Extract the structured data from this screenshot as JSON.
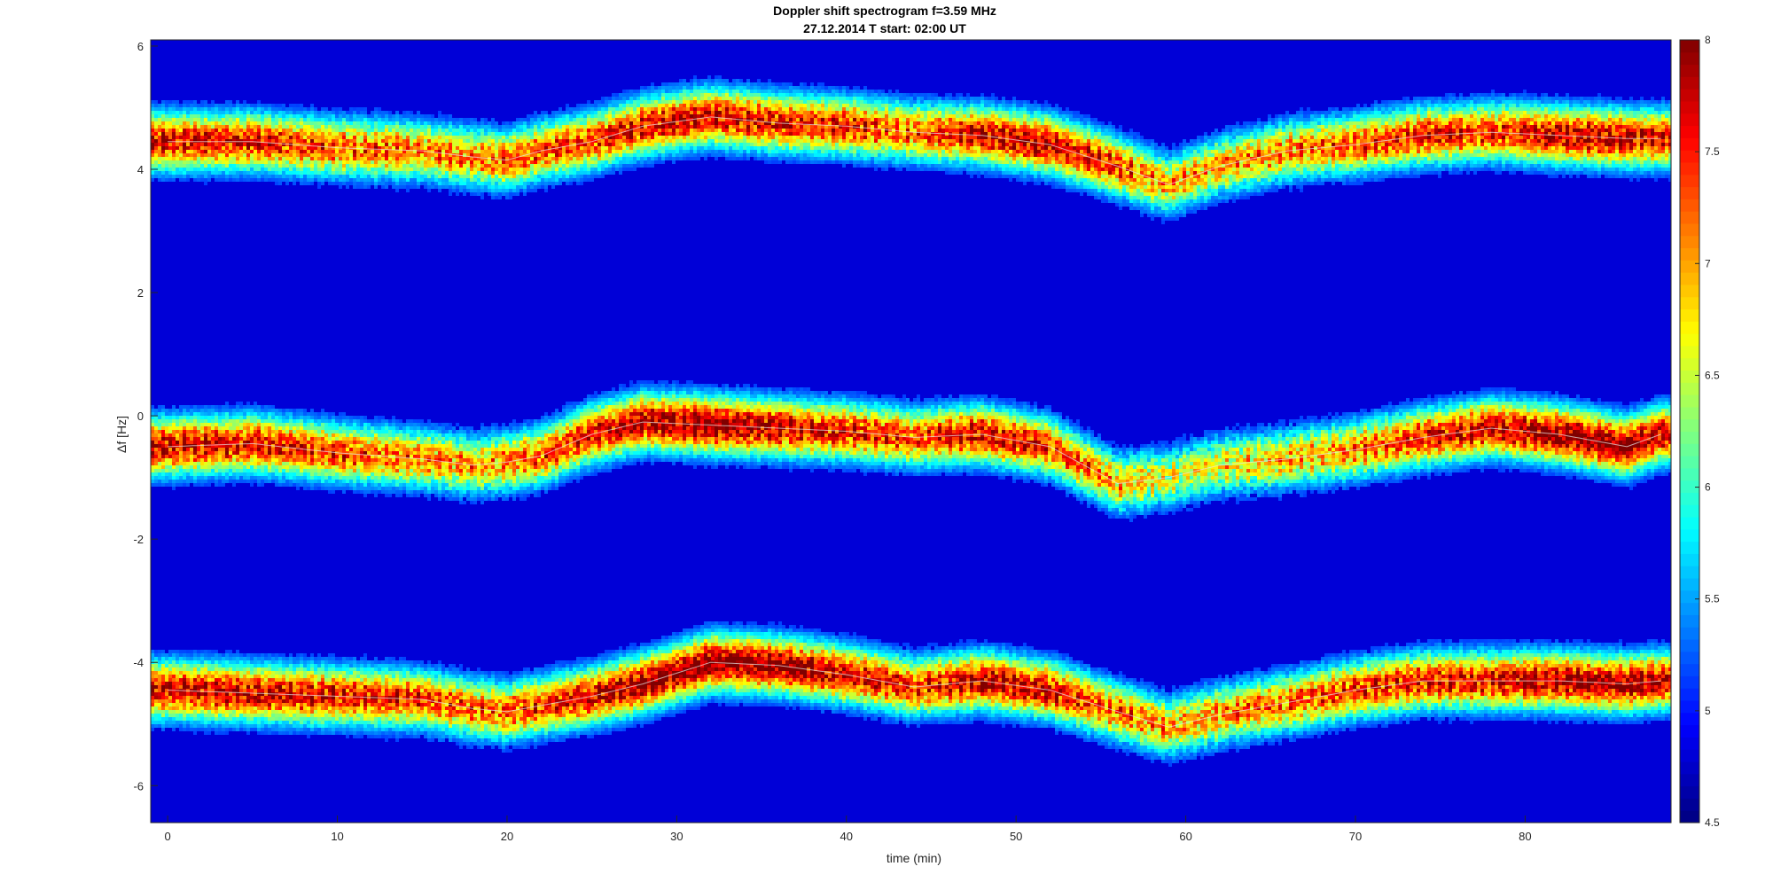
{
  "chart_data": {
    "type": "heatmap",
    "title": "Doppler shift spectrogram f=3.59 MHz",
    "subtitle": "27.12.2014   T start: 02:00 UT",
    "xlabel": "time (min)",
    "ylabel": "Δf [Hz]",
    "xlim": [
      -1,
      88.6
    ],
    "ylim": [
      -6.6,
      6.1
    ],
    "xticks": [
      0,
      10,
      20,
      30,
      40,
      50,
      60,
      70,
      80
    ],
    "yticks": [
      -6,
      -4,
      -2,
      0,
      2,
      4,
      6
    ],
    "grid": false,
    "colormap": "jet",
    "colorbar": {
      "range": [
        4.5,
        8
      ],
      "ticks": [
        4.5,
        5,
        5.5,
        6,
        6.5,
        7,
        7.5,
        8
      ]
    },
    "background_level": 4.8,
    "bands": [
      {
        "x": [
          0,
          5,
          10,
          15,
          18,
          20,
          22,
          25,
          28,
          32,
          36,
          40,
          44,
          48,
          52,
          56,
          59,
          62,
          66,
          70,
          74,
          78,
          82,
          86,
          88
        ],
        "y": [
          4.45,
          4.45,
          4.35,
          4.3,
          4.2,
          4.15,
          4.3,
          4.45,
          4.7,
          4.85,
          4.75,
          4.7,
          4.6,
          4.55,
          4.4,
          4.05,
          3.75,
          4.05,
          4.3,
          4.4,
          4.55,
          4.6,
          4.55,
          4.5,
          4.5
        ],
        "peak": [
          7.5,
          7.4,
          7.2,
          7.0,
          7.0,
          7.1,
          7.2,
          7.3,
          7.5,
          7.6,
          7.5,
          7.4,
          7.1,
          7.6,
          7.7,
          7.3,
          6.8,
          6.9,
          7.0,
          7.2,
          7.4,
          7.3,
          7.7,
          7.6,
          7.5
        ]
      },
      {
        "x": [
          0,
          5,
          10,
          15,
          18,
          20,
          22,
          25,
          28,
          32,
          36,
          40,
          44,
          48,
          52,
          56,
          59,
          62,
          66,
          70,
          74,
          78,
          82,
          86,
          88
        ],
        "y": [
          -0.5,
          -0.45,
          -0.6,
          -0.7,
          -0.8,
          -0.75,
          -0.65,
          -0.3,
          -0.1,
          -0.15,
          -0.2,
          -0.25,
          -0.35,
          -0.3,
          -0.5,
          -1.1,
          -1.0,
          -0.8,
          -0.7,
          -0.55,
          -0.35,
          -0.2,
          -0.3,
          -0.5,
          -0.3
        ],
        "peak": [
          7.6,
          7.5,
          7.3,
          7.0,
          6.9,
          7.0,
          7.2,
          7.5,
          7.7,
          7.9,
          7.6,
          7.4,
          7.2,
          7.6,
          7.3,
          6.8,
          6.5,
          6.6,
          6.8,
          7.0,
          7.4,
          7.6,
          7.8,
          7.9,
          7.6
        ]
      },
      {
        "x": [
          0,
          5,
          10,
          15,
          18,
          20,
          22,
          25,
          28,
          32,
          36,
          40,
          44,
          48,
          52,
          56,
          59,
          62,
          66,
          70,
          74,
          78,
          82,
          86,
          88
        ],
        "y": [
          -4.45,
          -4.5,
          -4.55,
          -4.6,
          -4.75,
          -4.8,
          -4.7,
          -4.55,
          -4.35,
          -4.0,
          -4.05,
          -4.2,
          -4.4,
          -4.3,
          -4.45,
          -4.8,
          -5.05,
          -4.85,
          -4.65,
          -4.45,
          -4.3,
          -4.3,
          -4.3,
          -4.35,
          -4.3
        ],
        "peak": [
          7.6,
          7.6,
          7.5,
          7.3,
          7.1,
          7.2,
          7.3,
          7.6,
          7.8,
          7.9,
          7.8,
          7.6,
          7.3,
          7.7,
          7.5,
          7.1,
          6.9,
          7.0,
          7.1,
          7.3,
          7.4,
          7.5,
          7.7,
          7.7,
          7.6
        ]
      }
    ]
  }
}
